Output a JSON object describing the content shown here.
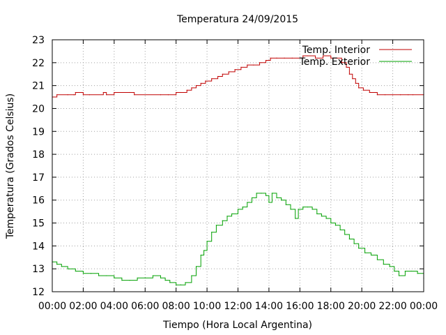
{
  "chart_data": {
    "type": "line",
    "title": "Temperatura 24/09/2015",
    "xlabel": "Tiempo (Hora Local Argentina)",
    "ylabel": "Temperatura (Grados Celsius)",
    "x_unit": "hours",
    "xlim": [
      0,
      24
    ],
    "ylim": [
      12,
      23
    ],
    "x_ticks": [
      0,
      2,
      4,
      6,
      8,
      10,
      12,
      14,
      16,
      18,
      20,
      22,
      24
    ],
    "x_tick_labels": [
      "00:00",
      "02:00",
      "04:00",
      "06:00",
      "08:00",
      "10:00",
      "12:00",
      "14:00",
      "16:00",
      "18:00",
      "20:00",
      "22:00",
      "00:00"
    ],
    "y_ticks": [
      12,
      13,
      14,
      15,
      16,
      17,
      18,
      19,
      20,
      21,
      22,
      23
    ],
    "grid": true,
    "legend": "top-right",
    "series": [
      {
        "name": "Temp. Interior",
        "color": "#c00000",
        "x": [
          0,
          0.3,
          1.0,
          1.4,
          1.5,
          2.0,
          2.4,
          3.3,
          3.5,
          4.0,
          5.0,
          5.3,
          7.0,
          7.5,
          8.0,
          8.3,
          8.7,
          9.0,
          9.3,
          9.6,
          9.9,
          10.3,
          10.7,
          11.0,
          11.4,
          11.8,
          12.2,
          12.6,
          13.0,
          13.4,
          13.8,
          14.1,
          14.5,
          15.0,
          15.5,
          16.0,
          16.2,
          16.5,
          17.0,
          17.5,
          18.0,
          18.4,
          18.7,
          19.0,
          19.2,
          19.4,
          19.6,
          19.8,
          20.1,
          20.5,
          21.0,
          21.5,
          22.0,
          22.5,
          23.0,
          23.3,
          24.0
        ],
        "values": [
          20.5,
          20.6,
          20.6,
          20.6,
          20.7,
          20.6,
          20.6,
          20.7,
          20.6,
          20.7,
          20.7,
          20.6,
          20.6,
          20.6,
          20.7,
          20.7,
          20.8,
          20.9,
          21.0,
          21.1,
          21.2,
          21.3,
          21.4,
          21.5,
          21.6,
          21.7,
          21.8,
          21.9,
          21.9,
          22.0,
          22.1,
          22.2,
          22.2,
          22.2,
          22.2,
          22.2,
          22.3,
          22.3,
          22.2,
          22.3,
          22.2,
          22.2,
          22.0,
          21.8,
          21.5,
          21.3,
          21.1,
          20.9,
          20.8,
          20.7,
          20.6,
          20.6,
          20.6,
          20.6,
          20.6,
          20.6,
          20.6
        ]
      },
      {
        "name": "Temp. Exterior",
        "color": "#00a000",
        "x": [
          0,
          0.3,
          0.6,
          1.0,
          1.5,
          2.0,
          2.5,
          3.0,
          3.5,
          4.0,
          4.5,
          5.0,
          5.5,
          6.0,
          6.5,
          7.0,
          7.3,
          7.6,
          8.0,
          8.3,
          8.6,
          9.0,
          9.3,
          9.6,
          9.8,
          10.0,
          10.3,
          10.6,
          11.0,
          11.3,
          11.6,
          12.0,
          12.3,
          12.6,
          12.9,
          13.2,
          13.5,
          13.8,
          14.0,
          14.2,
          14.5,
          14.8,
          15.1,
          15.4,
          15.7,
          15.9,
          16.2,
          16.5,
          16.8,
          17.1,
          17.4,
          17.7,
          18.0,
          18.3,
          18.6,
          18.9,
          19.2,
          19.5,
          19.8,
          20.2,
          20.6,
          21.0,
          21.4,
          21.8,
          22.1,
          22.4,
          22.8,
          23.2,
          23.6,
          24.0
        ],
        "values": [
          13.3,
          13.2,
          13.1,
          13.0,
          12.9,
          12.8,
          12.8,
          12.7,
          12.7,
          12.6,
          12.5,
          12.5,
          12.6,
          12.6,
          12.7,
          12.6,
          12.5,
          12.4,
          12.3,
          12.3,
          12.4,
          12.7,
          13.1,
          13.6,
          13.8,
          14.2,
          14.6,
          14.9,
          15.1,
          15.3,
          15.4,
          15.6,
          15.7,
          15.9,
          16.1,
          16.3,
          16.3,
          16.2,
          15.9,
          16.3,
          16.1,
          16.0,
          15.8,
          15.6,
          15.2,
          15.6,
          15.7,
          15.7,
          15.6,
          15.4,
          15.3,
          15.2,
          15.0,
          14.9,
          14.7,
          14.5,
          14.3,
          14.1,
          13.9,
          13.7,
          13.6,
          13.4,
          13.2,
          13.1,
          12.9,
          12.7,
          12.9,
          12.9,
          12.8,
          12.6
        ]
      }
    ]
  }
}
